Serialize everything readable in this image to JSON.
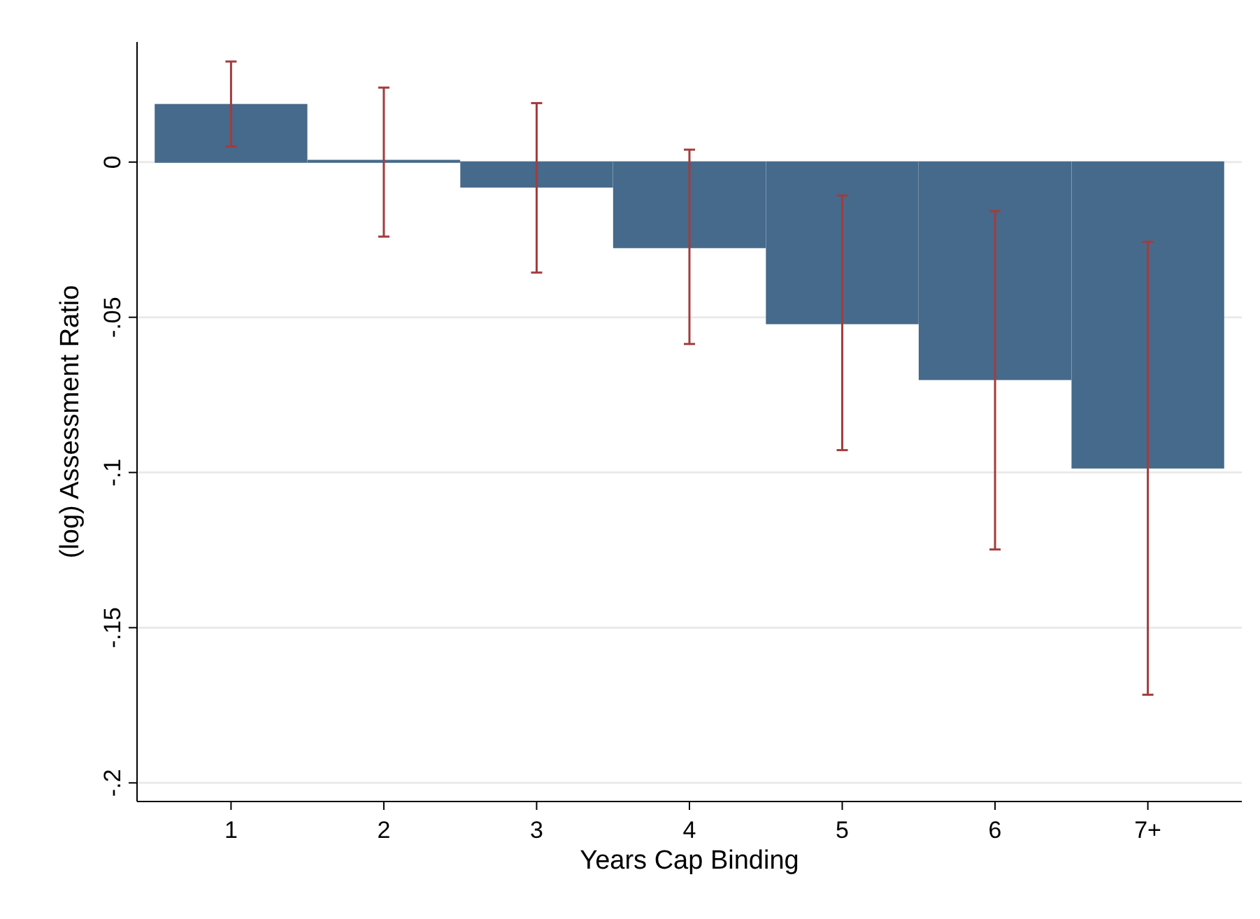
{
  "chart_data": {
    "type": "bar",
    "xlabel": "Years Cap Binding",
    "ylabel": "(log) Assessment Ratio",
    "categories": [
      "1",
      "2",
      "3",
      "4",
      "5",
      "6",
      "7+"
    ],
    "values": [
      0.0185,
      0.0005,
      -0.008,
      -0.0275,
      -0.052,
      -0.07,
      -0.0985
    ],
    "errors": [
      [
        0.005,
        0.0324
      ],
      [
        -0.024,
        0.024
      ],
      [
        -0.0356,
        0.019
      ],
      [
        -0.0586,
        0.004
      ],
      [
        -0.0928,
        -0.0108
      ],
      [
        -0.1248,
        -0.0158
      ],
      [
        -0.1716,
        -0.0257
      ]
    ],
    "color": "#466a8b",
    "ylim": [
      -0.206,
      0.0387
    ],
    "yticks": [
      {
        "value": 0,
        "label": "0"
      },
      {
        "value": -0.05,
        "label": "-.05"
      },
      {
        "value": -0.1,
        "label": "-.1"
      },
      {
        "value": -0.15,
        "label": "-.15"
      },
      {
        "value": -0.2,
        "label": "-.2"
      }
    ],
    "grid": "y"
  }
}
